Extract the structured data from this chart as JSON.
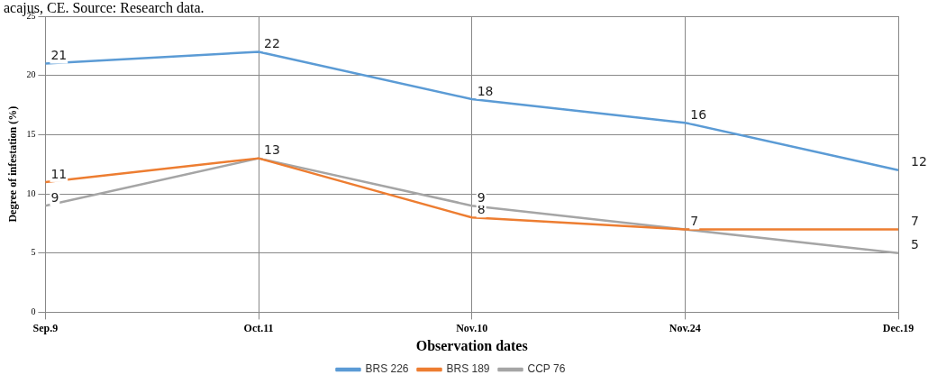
{
  "chart_data": {
    "type": "line",
    "xlabel": "Observation dates",
    "ylabel": "Degree of infestation (%)",
    "annotations": [
      "acajus, CE. Source: Research data."
    ],
    "categories": [
      "Sep.9",
      "Oct.11",
      "Nov.10",
      "Nov.24",
      "Dec.19"
    ],
    "series": [
      {
        "name": "BRS 226",
        "color": "#5b9bd5",
        "values": [
          21,
          22,
          18,
          16,
          12
        ],
        "value_labels": [
          "21",
          "22",
          "18",
          "16",
          "12"
        ]
      },
      {
        "name": "BRS 189",
        "color": "#ed7d31",
        "values": [
          11,
          13,
          8,
          7,
          7
        ],
        "value_labels": [
          "11",
          "13",
          "8",
          "7",
          "7"
        ]
      },
      {
        "name": "CCP 76",
        "color": "#a5a5a5",
        "values": [
          9,
          13,
          9,
          7,
          5
        ],
        "value_labels": [
          "9",
          null,
          "9",
          null,
          "5"
        ]
      }
    ],
    "ylim": [
      0,
      25
    ],
    "yticks": [
      0,
      5,
      10,
      15,
      20,
      25
    ],
    "grid": true,
    "legend": "bottom",
    "marker": "none",
    "line_style": "solid"
  }
}
